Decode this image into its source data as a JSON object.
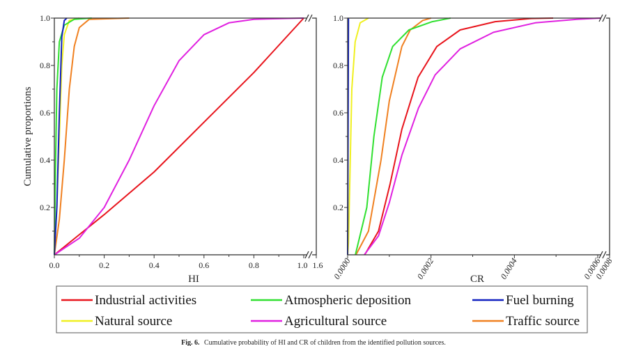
{
  "chart_data": [
    {
      "type": "line",
      "panel": "left",
      "xlabel": "HI",
      "ylabel": "Cumulative proportions",
      "xlim": [
        0,
        1.6
      ],
      "x_axis_break": [
        1.0,
        1.6
      ],
      "ylim": [
        0,
        1.0
      ],
      "xticks": [
        "0.0",
        "0.2",
        "0.4",
        "0.6",
        "0.8",
        "1.0",
        "1.6"
      ],
      "yticks": [
        "0.2",
        "0.4",
        "0.6",
        "0.8",
        "1.0"
      ],
      "grid": false,
      "series": [
        {
          "name": "Industrial activities",
          "color": "#e8141c",
          "x": [
            0,
            0.2,
            0.4,
            0.6,
            0.8,
            1.0
          ],
          "y": [
            0,
            0.17,
            0.35,
            0.56,
            0.77,
            1.0
          ]
        },
        {
          "name": "Agricultural source",
          "color": "#e020e0",
          "x": [
            0,
            0.1,
            0.2,
            0.3,
            0.4,
            0.5,
            0.6,
            0.7,
            0.8,
            1.0
          ],
          "y": [
            0,
            0.07,
            0.2,
            0.4,
            0.63,
            0.82,
            0.93,
            0.98,
            0.995,
            1.0
          ]
        },
        {
          "name": "Traffic source",
          "color": "#f08020",
          "x": [
            0,
            0.02,
            0.04,
            0.06,
            0.08,
            0.1,
            0.14,
            0.3
          ],
          "y": [
            0,
            0.15,
            0.4,
            0.7,
            0.88,
            0.96,
            0.995,
            1.0
          ]
        },
        {
          "name": "Natural source",
          "color": "#f0f020",
          "x": [
            0,
            0.01,
            0.02,
            0.03,
            0.04,
            0.06,
            0.1
          ],
          "y": [
            0,
            0.2,
            0.5,
            0.8,
            0.93,
            0.99,
            1.0
          ]
        },
        {
          "name": "Atmospheric deposition",
          "color": "#30e030",
          "x": [
            0,
            0.005,
            0.01,
            0.02,
            0.04,
            0.08,
            0.15
          ],
          "y": [
            0,
            0.4,
            0.7,
            0.9,
            0.97,
            0.995,
            1.0
          ]
        },
        {
          "name": "Fuel burning",
          "color": "#1020c0",
          "x": [
            0,
            0.01,
            0.02,
            0.03,
            0.04,
            0.05
          ],
          "y": [
            0,
            0.2,
            0.6,
            0.92,
            0.99,
            1.0
          ]
        }
      ]
    },
    {
      "type": "line",
      "panel": "right",
      "xlabel": "CR",
      "ylabel": "",
      "xlim": [
        0,
        0.0008
      ],
      "x_axis_break": [
        0.0006,
        0.0008
      ],
      "ylim": [
        0,
        1.0
      ],
      "xticks": [
        "0.0000",
        "0.0002",
        "0.0004",
        "0.0006",
        "0.0008"
      ],
      "yticks": [
        "0.2",
        "0.4",
        "0.6",
        "0.8",
        "1.0"
      ],
      "grid": false,
      "series": [
        {
          "name": "Industrial activities",
          "color": "#e8141c",
          "x": [
            4.1e-05,
            7.4e-05,
            0.000102,
            0.00013,
            0.000169,
            0.000214,
            0.00027,
            0.000354,
            0.000437,
            0.000493
          ],
          "y": [
            0,
            0.1,
            0.3,
            0.53,
            0.75,
            0.88,
            0.95,
            0.985,
            0.998,
            1.0
          ]
        },
        {
          "name": "Agricultural source",
          "color": "#e020e0",
          "x": [
            4e-05,
            7.4e-05,
            0.0001,
            0.00013,
            0.00017,
            0.00021,
            0.00027,
            0.00035,
            0.00045,
            0.00055,
            0.00065
          ],
          "y": [
            0,
            0.08,
            0.22,
            0.42,
            0.62,
            0.76,
            0.87,
            0.94,
            0.98,
            0.995,
            1.0
          ]
        },
        {
          "name": "Traffic source",
          "color": "#f08020",
          "x": [
            2e-05,
            5e-05,
            8e-05,
            0.0001,
            0.00013,
            0.00015,
            0.00018,
            0.0002
          ],
          "y": [
            0,
            0.1,
            0.4,
            0.65,
            0.88,
            0.95,
            0.99,
            1.0
          ]
        },
        {
          "name": "Atmospheric deposition",
          "color": "#30e030",
          "x": [
            1.85e-05,
            4.6e-05,
            6.3e-05,
            8.3e-05,
            0.000108,
            0.000147,
            0.000203,
            0.000247
          ],
          "y": [
            0,
            0.2,
            0.5,
            0.75,
            0.88,
            0.95,
            0.985,
            1.0
          ]
        },
        {
          "name": "Natural source",
          "color": "#f0f020",
          "x": [
            0,
            2e-06,
            1e-05,
            1.8e-05,
            3e-05,
            5e-05
          ],
          "y": [
            0,
            0.05,
            0.7,
            0.9,
            0.98,
            1.0
          ]
        },
        {
          "name": "Fuel burning",
          "color": "#1020c0",
          "x": [
            0,
            1e-06,
            2e-06
          ],
          "y": [
            0,
            0.5,
            1.0
          ]
        }
      ]
    }
  ],
  "legend": {
    "placement": "bottom",
    "items": [
      {
        "label": "Industrial activities",
        "color": "#e8141c"
      },
      {
        "label": "Atmospheric deposition",
        "color": "#30e030"
      },
      {
        "label": "Fuel burning",
        "color": "#1020c0"
      },
      {
        "label": "Natural source",
        "color": "#f0f020"
      },
      {
        "label": "Agricultural source",
        "color": "#e020e0"
      },
      {
        "label": "Traffic source",
        "color": "#f08020"
      }
    ]
  },
  "caption": {
    "label": "Fig. 6.",
    "text": "Cumulative probability of HI and CR of children from the identified pollution sources."
  }
}
